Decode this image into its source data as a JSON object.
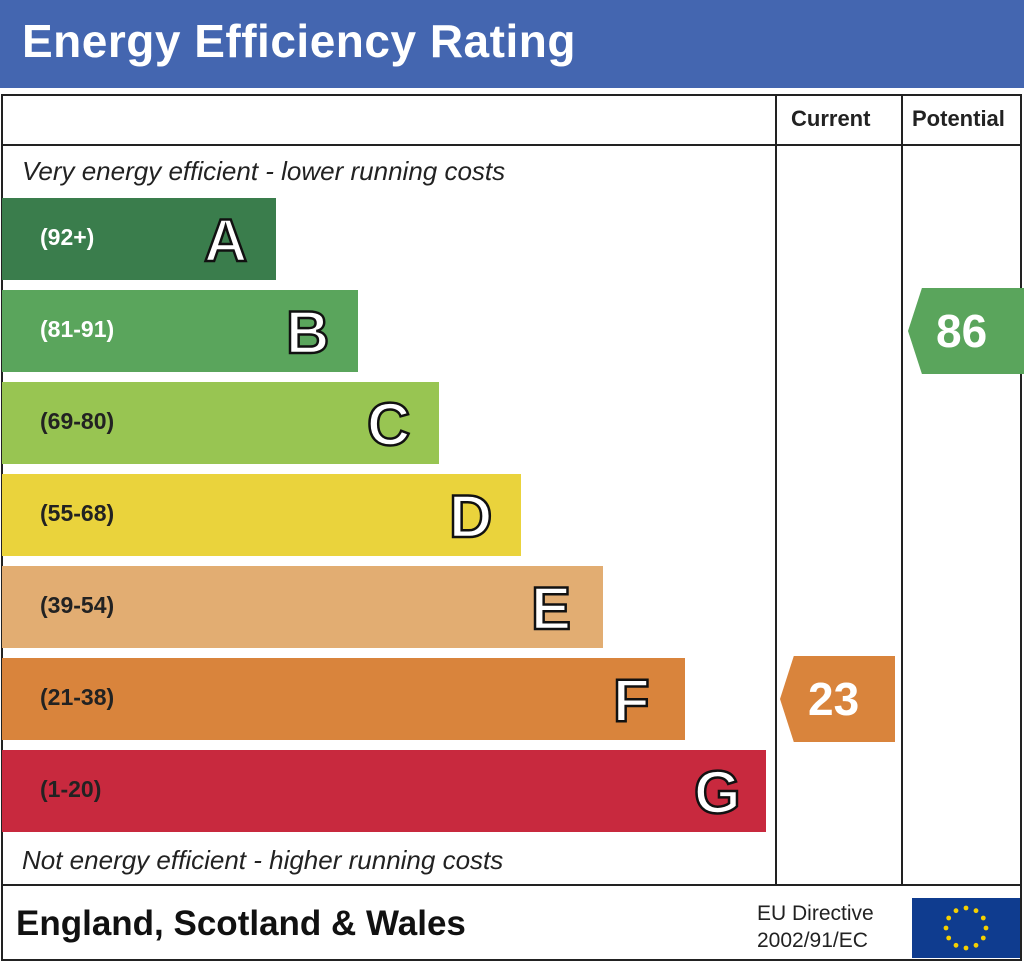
{
  "header": {
    "title": "Energy Efficiency Rating"
  },
  "columns": {
    "current": "Current",
    "potential": "Potential"
  },
  "notes": {
    "top": "Very energy efficient - lower running costs",
    "bottom": "Not energy efficient - higher running costs"
  },
  "footer": {
    "region": "England, Scotland & Wales",
    "directive_line1": "EU Directive",
    "directive_line2": "2002/91/EC",
    "flag_icon": "eu-flag-icon"
  },
  "chart_data": {
    "type": "bar",
    "title": "Energy Efficiency Rating",
    "bands": [
      {
        "letter": "A",
        "range": "(92+)",
        "color": "#3a7d4c",
        "range_color": "#ffffff"
      },
      {
        "letter": "B",
        "range": "(81-91)",
        "color": "#5aa55c",
        "range_color": "#ffffff"
      },
      {
        "letter": "C",
        "range": "(69-80)",
        "color": "#98c552",
        "range_color": "#222222"
      },
      {
        "letter": "D",
        "range": "(55-68)",
        "color": "#ead33c",
        "range_color": "#222222"
      },
      {
        "letter": "E",
        "range": "(39-54)",
        "color": "#e2ad72",
        "range_color": "#222222"
      },
      {
        "letter": "F",
        "range": "(21-38)",
        "color": "#d9843c",
        "range_color": "#222222"
      },
      {
        "letter": "G",
        "range": "(1-20)",
        "color": "#c8293e",
        "range_color": "#222222"
      }
    ],
    "current": {
      "value": 23,
      "label": "23",
      "band": "F",
      "color": "#d9843c"
    },
    "potential": {
      "value": 86,
      "label": "86",
      "band": "B",
      "color": "#5aa55c"
    }
  }
}
